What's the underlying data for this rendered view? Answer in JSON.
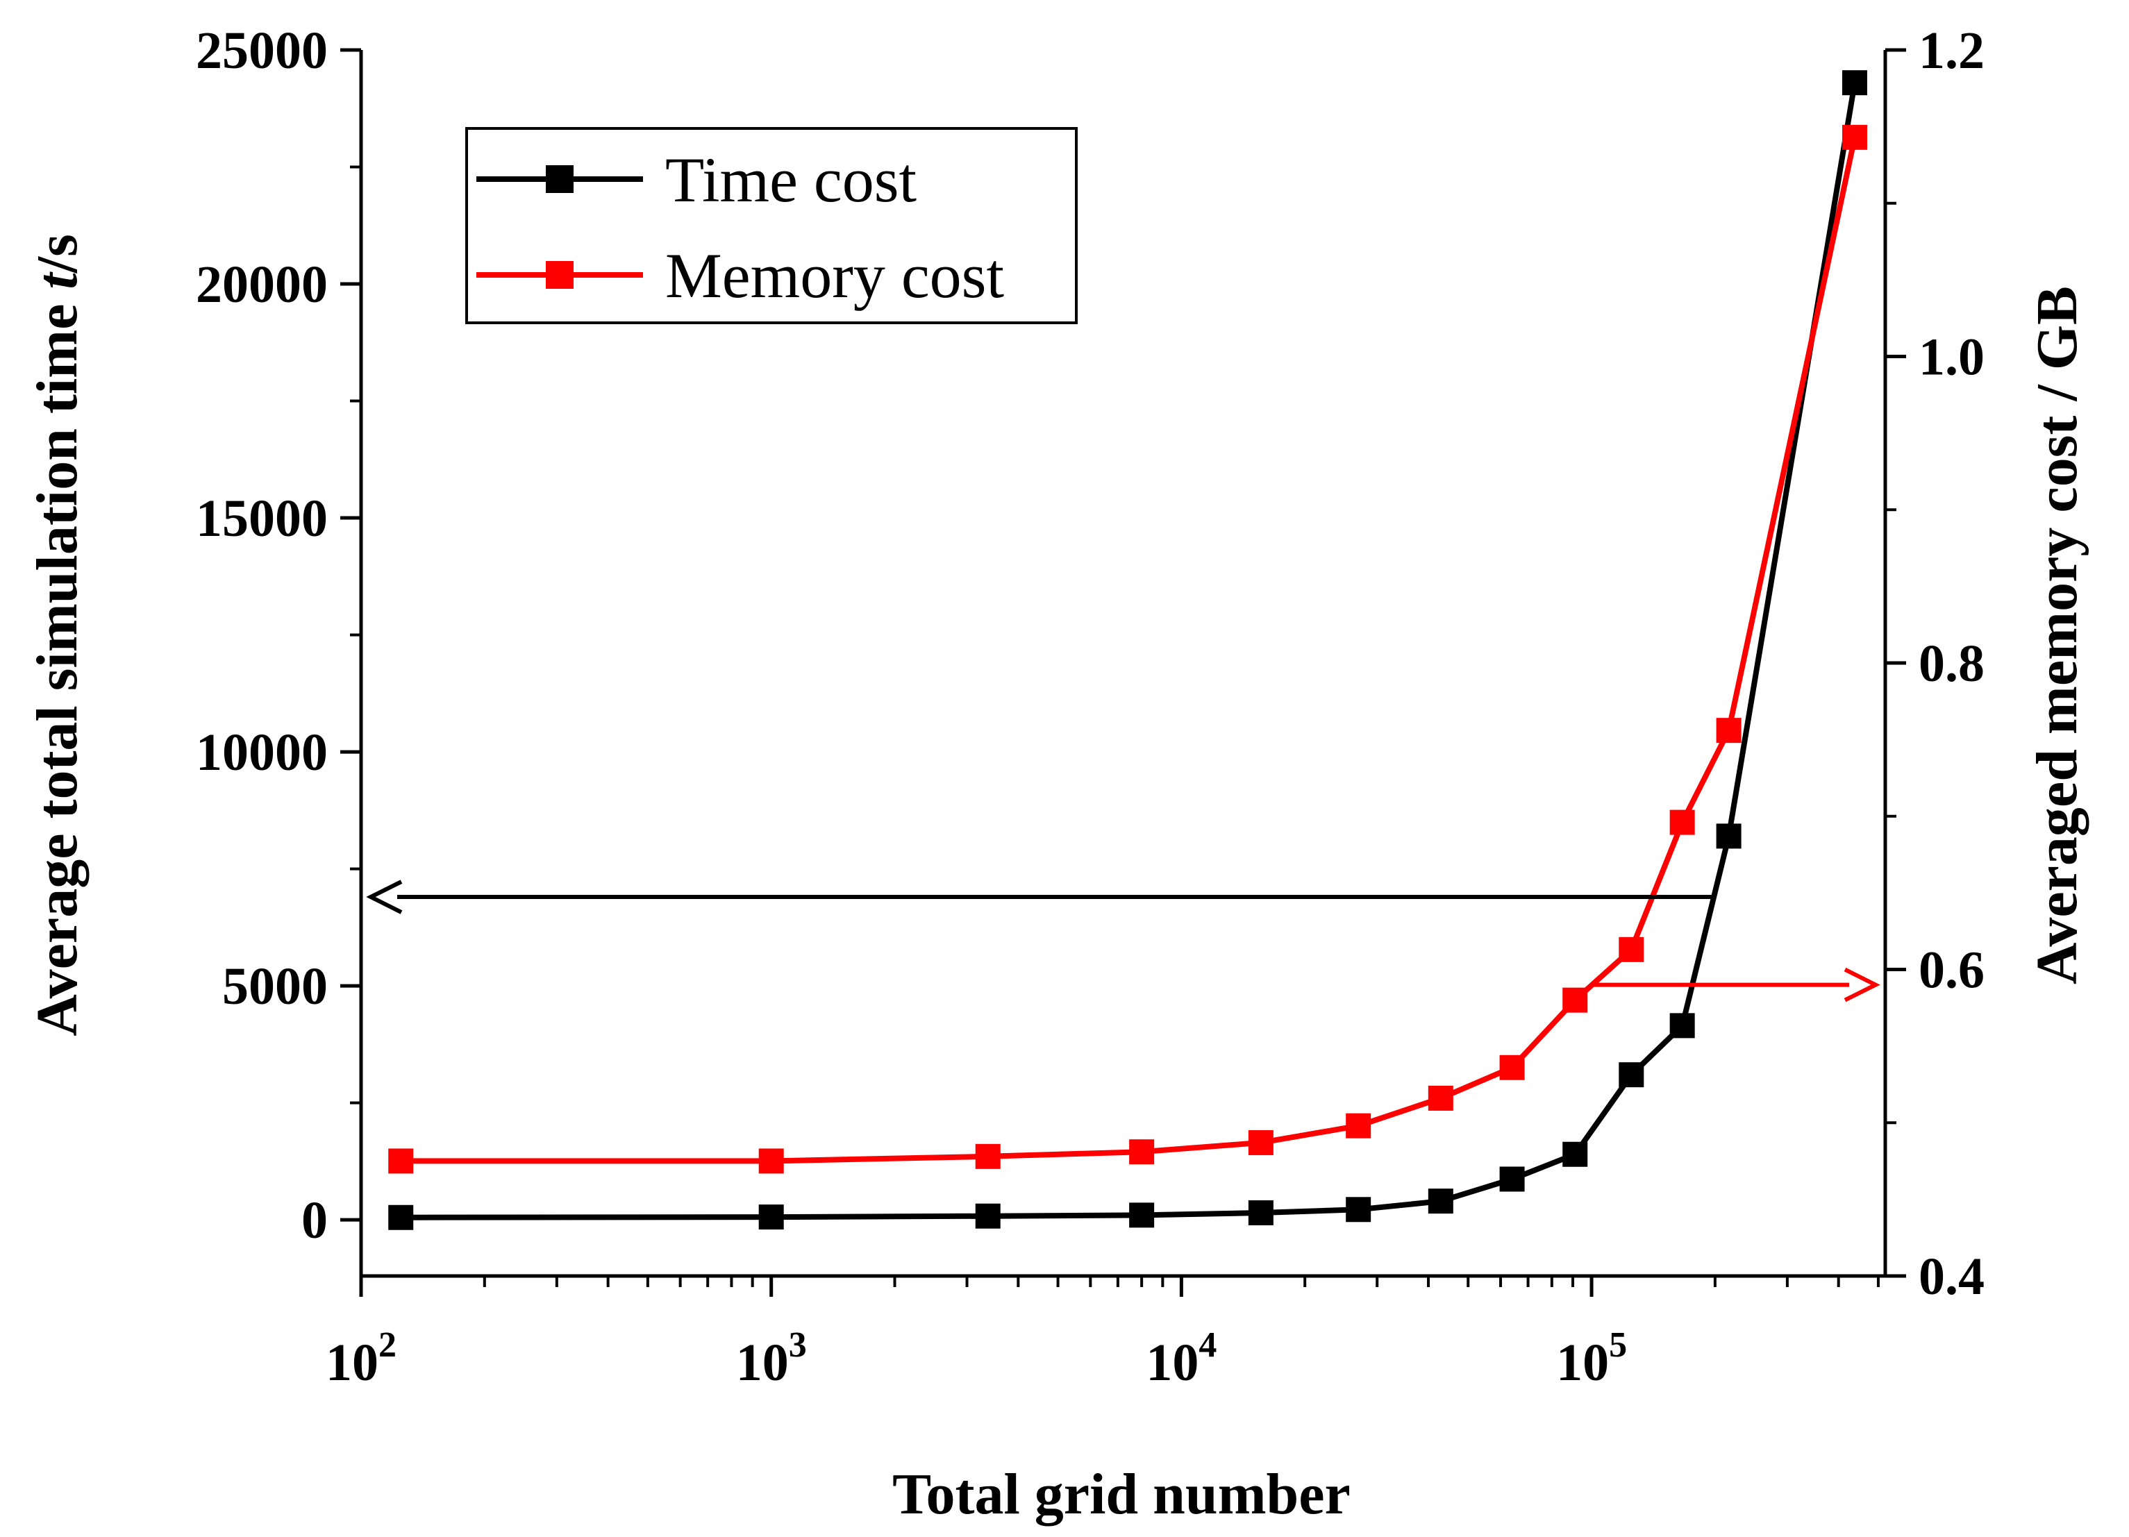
{
  "chart_data": {
    "type": "line",
    "title": "",
    "xlabel": "Total grid number",
    "ylabel_left": {
      "pre": "Average total simulation time ",
      "var": "t",
      "post": "/s"
    },
    "ylabel_right": "Averaged memory cost / GB",
    "xscale": "log",
    "xlim": [
      100,
      520000
    ],
    "ylim_left": [
      -1200,
      25000
    ],
    "ylim_right": [
      0.4,
      1.2
    ],
    "xticks": [
      {
        "value": 100,
        "base": "10",
        "exp": "2"
      },
      {
        "value": 1000,
        "base": "10",
        "exp": "3"
      },
      {
        "value": 10000,
        "base": "10",
        "exp": "4"
      },
      {
        "value": 100000,
        "base": "10",
        "exp": "5"
      }
    ],
    "yticks_left": [
      "0",
      "5000",
      "10000",
      "15000",
      "20000",
      "25000"
    ],
    "yticks_left_values": [
      0,
      5000,
      10000,
      15000,
      20000,
      25000
    ],
    "yticks_right": [
      "0.4",
      "0.6",
      "0.8",
      "1.0",
      "1.2"
    ],
    "yticks_right_values": [
      0.4,
      0.6,
      0.8,
      1.0,
      1.2
    ],
    "legend_position": "top-left",
    "series": [
      {
        "name": "Time cost",
        "axis": "left",
        "color": "#000000",
        "marker": "square",
        "x": [
          125,
          1000,
          3375,
          8000,
          15625,
          27000,
          42875,
          64000,
          91125,
          125000,
          166375,
          216000,
          438000
        ],
        "y": [
          50,
          60,
          80,
          100,
          150,
          220,
          400,
          870,
          1400,
          3100,
          4150,
          8200,
          24300
        ]
      },
      {
        "name": "Memory cost",
        "axis": "right",
        "color": "#ff0000",
        "marker": "square",
        "x": [
          125,
          1000,
          3375,
          8000,
          15625,
          27000,
          42875,
          64000,
          91125,
          125000,
          166375,
          216000,
          438000
        ],
        "y": [
          0.475,
          0.475,
          0.478,
          0.481,
          0.487,
          0.498,
          0.516,
          0.536,
          0.58,
          0.613,
          0.696,
          0.756,
          1.143
        ]
      }
    ],
    "annotations": [
      {
        "type": "arrow",
        "series": "Time cost",
        "direction": "left",
        "at_x": 200000,
        "at_y": 6900,
        "color": "#000000"
      },
      {
        "type": "arrow",
        "series": "Memory cost",
        "direction": "right",
        "at_x": 100000,
        "at_y": 0.59,
        "color": "#ff0000"
      }
    ]
  }
}
